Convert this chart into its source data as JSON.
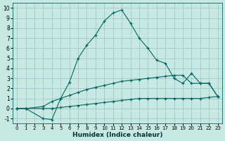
{
  "title": "",
  "xlabel": "Humidex (Indice chaleur)",
  "bg_color": "#c8e8e4",
  "grid_color": "#a0c8c4",
  "line_color": "#006860",
  "xlim": [
    -0.5,
    23.5
  ],
  "ylim": [
    -1.5,
    10.5
  ],
  "xticks": [
    0,
    1,
    2,
    3,
    4,
    5,
    6,
    7,
    8,
    9,
    10,
    11,
    12,
    13,
    14,
    15,
    16,
    17,
    18,
    19,
    20,
    21,
    22,
    23
  ],
  "yticks": [
    -1,
    0,
    1,
    2,
    3,
    4,
    5,
    6,
    7,
    8,
    9,
    10
  ],
  "series": [
    {
      "x": [
        0,
        1,
        3,
        4,
        5,
        6,
        7,
        8,
        9,
        10,
        11,
        12,
        13,
        14,
        15,
        16,
        17,
        18,
        19,
        20,
        21,
        22,
        23
      ],
      "y": [
        0.0,
        0.0,
        -1.0,
        -1.1,
        1.0,
        2.6,
        5.0,
        6.3,
        7.3,
        8.7,
        9.5,
        9.8,
        8.5,
        7.0,
        6.0,
        4.8,
        4.5,
        3.0,
        2.5,
        3.5,
        2.5,
        2.5,
        1.2
      ]
    },
    {
      "x": [
        0,
        1,
        3,
        4,
        5,
        6,
        7,
        8,
        9,
        10,
        11,
        12,
        13,
        14,
        15,
        16,
        17,
        18,
        19,
        20,
        21,
        22,
        23
      ],
      "y": [
        0.0,
        0.0,
        0.2,
        0.7,
        1.0,
        1.3,
        1.6,
        1.9,
        2.1,
        2.3,
        2.5,
        2.7,
        2.8,
        2.9,
        3.0,
        3.1,
        3.2,
        3.3,
        3.3,
        2.5,
        2.5,
        2.5,
        1.2
      ]
    },
    {
      "x": [
        0,
        1,
        3,
        4,
        5,
        6,
        7,
        8,
        9,
        10,
        11,
        12,
        13,
        14,
        15,
        16,
        17,
        18,
        19,
        20,
        21,
        22,
        23
      ],
      "y": [
        0.0,
        0.0,
        0.0,
        0.0,
        0.1,
        0.2,
        0.3,
        0.4,
        0.5,
        0.6,
        0.7,
        0.8,
        0.9,
        1.0,
        1.0,
        1.0,
        1.0,
        1.0,
        1.0,
        1.0,
        1.0,
        1.1,
        1.2
      ]
    }
  ]
}
